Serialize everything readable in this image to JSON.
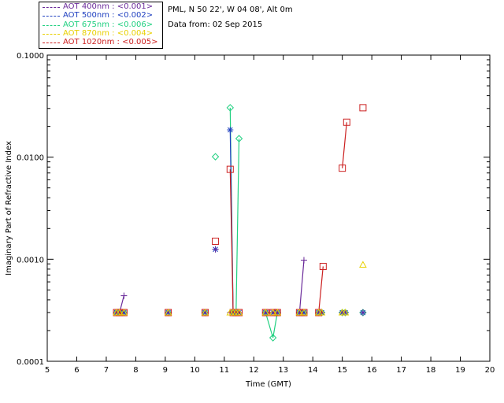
{
  "legend": [
    {
      "label": "AOT  400nm : <0.001>",
      "color": "#6a2a9a"
    },
    {
      "label": "AOT  500nm : <0.002>",
      "color": "#2040c0"
    },
    {
      "label": "AOT  675nm : <0.006>",
      "color": "#20d080"
    },
    {
      "label": "AOT  870nm : <0.004>",
      "color": "#e8d000"
    },
    {
      "label": "AOT 1020nm : <0.005>",
      "color": "#cc2020"
    }
  ],
  "info": {
    "site": "PML, N 50 22', W 04 08', Alt 0m",
    "date": "Data from: 02 Sep 2015"
  },
  "chart_data": {
    "type": "scatter",
    "xlabel": "Time (GMT)",
    "ylabel": "Imaginary Part of Refractive Index",
    "xlim": [
      5,
      20
    ],
    "ylim": [
      0.0001,
      0.1
    ],
    "yscale": "log",
    "x_ticks": [
      "5",
      "6",
      "7",
      "8",
      "9",
      "10",
      "11",
      "12",
      "13",
      "14",
      "15",
      "16",
      "17",
      "18",
      "19",
      "20"
    ],
    "y_ticks": [
      "0.0001",
      "0.0010",
      "0.0100",
      "0.1000"
    ],
    "grid": false,
    "legend_position": "top-left",
    "series": [
      {
        "name": "AOT  400nm : <0.001>",
        "color": "#6a2a9a",
        "marker": "plus",
        "x": [
          7.35,
          7.45,
          7.6,
          9.1,
          10.35,
          10.7,
          11.2,
          11.3,
          11.4,
          11.5,
          12.4,
          12.65,
          12.8,
          13.55,
          13.7,
          14.2,
          14.3,
          15.0,
          15.1,
          15.7
        ],
        "y": [
          0.0003,
          0.0003,
          0.00044,
          0.0003,
          0.0003,
          0.00125,
          0.0003,
          0.0003,
          0.0003,
          0.0003,
          0.0003,
          0.0003,
          0.0003,
          0.0003,
          0.00098,
          0.0003,
          0.0003,
          0.0003,
          0.0003,
          0.0003
        ]
      },
      {
        "name": "AOT  500nm : <0.002>",
        "color": "#2040c0",
        "marker": "asterisk",
        "x": [
          7.35,
          7.45,
          7.6,
          9.1,
          10.35,
          10.7,
          11.2,
          11.3,
          11.4,
          11.5,
          12.4,
          12.65,
          12.8,
          13.55,
          13.7,
          14.2,
          14.3,
          15.0,
          15.1,
          15.7
        ],
        "y": [
          0.0003,
          0.0003,
          0.0003,
          0.0003,
          0.0003,
          0.00125,
          0.0185,
          0.0003,
          0.0003,
          0.0003,
          0.0003,
          0.0003,
          0.0003,
          0.0003,
          0.0003,
          0.0003,
          0.0003,
          0.0003,
          0.0003,
          0.0003
        ]
      },
      {
        "name": "AOT  675nm : <0.006>",
        "color": "#20d080",
        "marker": "diamond",
        "x": [
          7.35,
          7.45,
          7.6,
          9.1,
          10.35,
          10.7,
          11.2,
          11.3,
          11.4,
          11.5,
          12.4,
          12.65,
          12.8,
          13.55,
          13.7,
          14.2,
          14.3,
          15.0,
          15.1,
          15.7
        ],
        "y": [
          0.0003,
          0.0003,
          0.0003,
          0.0003,
          0.0003,
          0.0101,
          0.0305,
          0.0003,
          0.0003,
          0.0152,
          0.0003,
          0.00017,
          0.0003,
          0.0003,
          0.0003,
          0.0003,
          0.0003,
          0.0003,
          0.0003,
          0.0003
        ]
      },
      {
        "name": "AOT  870nm : <0.004>",
        "color": "#e8d000",
        "marker": "triangle",
        "x": [
          7.35,
          7.45,
          7.6,
          9.1,
          10.35,
          11.2,
          11.3,
          11.4,
          11.5,
          12.4,
          12.65,
          12.8,
          13.55,
          13.7,
          14.2,
          14.3,
          15.0,
          15.1,
          15.7
        ],
        "y": [
          0.0003,
          0.0003,
          0.0003,
          0.0003,
          0.0003,
          0.0003,
          0.0003,
          0.0003,
          0.0003,
          0.0003,
          0.0003,
          0.0003,
          0.0003,
          0.0003,
          0.0003,
          0.0003,
          0.0003,
          0.0003,
          0.00088
        ]
      },
      {
        "name": "AOT 1020nm : <0.005>",
        "color": "#cc2020",
        "marker": "square",
        "x": [
          7.35,
          7.45,
          7.6,
          9.1,
          10.35,
          10.7,
          11.2,
          11.3,
          11.4,
          11.5,
          12.4,
          12.65,
          12.8,
          13.55,
          13.7,
          14.2,
          14.35,
          15.0,
          15.15,
          15.7
        ],
        "y": [
          0.0003,
          0.0003,
          0.0003,
          0.0003,
          0.0003,
          0.0015,
          0.0076,
          0.0003,
          0.0003,
          0.0003,
          0.0003,
          0.0003,
          0.0003,
          0.0003,
          0.0003,
          0.0003,
          0.00085,
          0.0078,
          0.022,
          0.0305
        ]
      }
    ]
  }
}
